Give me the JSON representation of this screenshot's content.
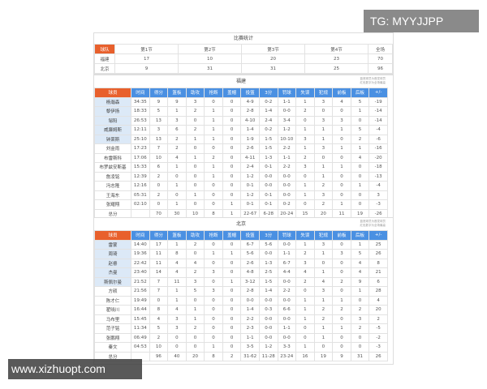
{
  "watermark_top": "TG: MYYJJPP",
  "watermark_bottom": "www.xizhuopt.com",
  "colors": {
    "header_blue": "#4a90e2",
    "header_orange": "#e8602c",
    "starter_bg": "#dce9f7"
  },
  "score": {
    "title": "比赛统计",
    "headers": [
      "球队",
      "第1节",
      "第2节",
      "第3节",
      "第4节",
      "全场"
    ],
    "rows": [
      [
        "福建",
        "17",
        "10",
        "20",
        "23",
        "70"
      ],
      [
        "北京",
        "9",
        "31",
        "31",
        "25",
        "96"
      ]
    ]
  },
  "columns": [
    "球员",
    "时间",
    "得分",
    "篮板",
    "助攻",
    "抢断",
    "盖帽",
    "投篮",
    "3分",
    "罚球",
    "失误",
    "犯规",
    "前板",
    "后板",
    "+/-"
  ],
  "note": [
    "蓝底球员为首发球员",
    "红色数字为全场最高"
  ],
  "teams": [
    {
      "name": "福建",
      "starters": 5,
      "rows": [
        [
          "杨瀚森",
          "34:35",
          "9",
          "9",
          "3",
          "0",
          "0",
          "4-9",
          "0-2",
          "1-1",
          "1",
          "3",
          "4",
          "5",
          "-19"
        ],
        [
          "黎伊扬",
          "18:33",
          "5",
          "1",
          "2",
          "1",
          "0",
          "2-8",
          "1-4",
          "0-0",
          "2",
          "0",
          "0",
          "1",
          "-14"
        ],
        [
          "邹阳",
          "26:53",
          "13",
          "3",
          "0",
          "1",
          "0",
          "4-10",
          "2-4",
          "3-4",
          "0",
          "3",
          "3",
          "0",
          "-14"
        ],
        [
          "威廉姆斯",
          "12:11",
          "3",
          "6",
          "2",
          "1",
          "0",
          "1-4",
          "0-2",
          "1-2",
          "1",
          "1",
          "1",
          "5",
          "-4"
        ],
        [
          "钟莱斯",
          "25:10",
          "13",
          "2",
          "1",
          "1",
          "0",
          "1-9",
          "1-5",
          "10-10",
          "3",
          "1",
          "0",
          "2",
          "-6"
        ],
        [
          "刘金雨",
          "17:23",
          "7",
          "2",
          "0",
          "0",
          "0",
          "2-6",
          "1-5",
          "2-2",
          "1",
          "3",
          "1",
          "1",
          "-16"
        ],
        [
          "布雷斯科",
          "17:06",
          "10",
          "4",
          "1",
          "2",
          "0",
          "4-11",
          "1-3",
          "1-1",
          "2",
          "0",
          "0",
          "4",
          "-20"
        ],
        [
          "布罗兹安斯基",
          "15:33",
          "6",
          "1",
          "0",
          "1",
          "0",
          "2-4",
          "0-1",
          "2-2",
          "3",
          "1",
          "1",
          "0",
          "-18"
        ],
        [
          "詹凌铭",
          "12:39",
          "2",
          "0",
          "0",
          "1",
          "0",
          "1-2",
          "0-0",
          "0-0",
          "0",
          "1",
          "0",
          "0",
          "-13"
        ],
        [
          "冯志隆",
          "12:16",
          "0",
          "1",
          "0",
          "0",
          "0",
          "0-1",
          "0-0",
          "0-0",
          "1",
          "2",
          "0",
          "1",
          "-4"
        ],
        [
          "王海东",
          "05:31",
          "2",
          "0",
          "1",
          "0",
          "0",
          "1-2",
          "0-1",
          "0-0",
          "1",
          "3",
          "0",
          "0",
          "3"
        ],
        [
          "张耀翔",
          "02:10",
          "0",
          "1",
          "0",
          "0",
          "1",
          "0-1",
          "0-1",
          "0-2",
          "0",
          "2",
          "1",
          "0",
          "-3"
        ],
        [
          "总分",
          "",
          "70",
          "30",
          "10",
          "8",
          "1",
          "22-67",
          "6-28",
          "20-24",
          "15",
          "20",
          "11",
          "19",
          "-26"
        ]
      ]
    },
    {
      "name": "北京",
      "starters": 5,
      "rows": [
        [
          "雷蒙",
          "14:40",
          "17",
          "1",
          "2",
          "0",
          "0",
          "6-7",
          "5-6",
          "0-0",
          "1",
          "3",
          "0",
          "1",
          "25"
        ],
        [
          "周琦",
          "19:36",
          "11",
          "8",
          "0",
          "1",
          "1",
          "5-6",
          "0-0",
          "1-1",
          "2",
          "1",
          "3",
          "5",
          "26"
        ],
        [
          "赵睿",
          "22:42",
          "11",
          "4",
          "4",
          "0",
          "0",
          "2-6",
          "1-3",
          "6-7",
          "3",
          "0",
          "0",
          "4",
          "8"
        ],
        [
          "杰曼",
          "23:40",
          "14",
          "4",
          "2",
          "3",
          "0",
          "4-8",
          "2-5",
          "4-4",
          "4",
          "1",
          "0",
          "4",
          "21"
        ],
        [
          "斯佩尔曼",
          "21:52",
          "7",
          "11",
          "3",
          "0",
          "1",
          "3-12",
          "1-5",
          "0-0",
          "2",
          "4",
          "2",
          "9",
          "6"
        ],
        [
          "方硕",
          "21:56",
          "7",
          "1",
          "5",
          "3",
          "0",
          "2-8",
          "1-4",
          "2-2",
          "0",
          "3",
          "0",
          "1",
          "28"
        ],
        [
          "陈才仁",
          "19:49",
          "0",
          "1",
          "0",
          "0",
          "0",
          "0-0",
          "0-0",
          "0-0",
          "1",
          "1",
          "1",
          "0",
          "4"
        ],
        [
          "翟晓川",
          "16:44",
          "8",
          "4",
          "1",
          "0",
          "0",
          "1-4",
          "0-3",
          "6-6",
          "1",
          "2",
          "2",
          "2",
          "20"
        ],
        [
          "马布里",
          "15:45",
          "4",
          "3",
          "1",
          "0",
          "0",
          "2-2",
          "0-0",
          "0-0",
          "1",
          "2",
          "0",
          "3",
          "2"
        ],
        [
          "范子铭",
          "11:34",
          "5",
          "3",
          "2",
          "0",
          "0",
          "2-3",
          "0-0",
          "1-1",
          "0",
          "1",
          "1",
          "2",
          "-5"
        ],
        [
          "张鹏翔",
          "06:49",
          "2",
          "0",
          "0",
          "0",
          "0",
          "1-1",
          "0-0",
          "0-0",
          "0",
          "1",
          "0",
          "0",
          "-2"
        ],
        [
          "秦文",
          "04:53",
          "10",
          "0",
          "0",
          "1",
          "0",
          "3-5",
          "1-2",
          "3-3",
          "1",
          "0",
          "0",
          "0",
          "-3"
        ],
        [
          "总分",
          "",
          "96",
          "40",
          "20",
          "8",
          "2",
          "31-62",
          "11-28",
          "23-24",
          "16",
          "19",
          "9",
          "31",
          "26"
        ]
      ]
    }
  ]
}
